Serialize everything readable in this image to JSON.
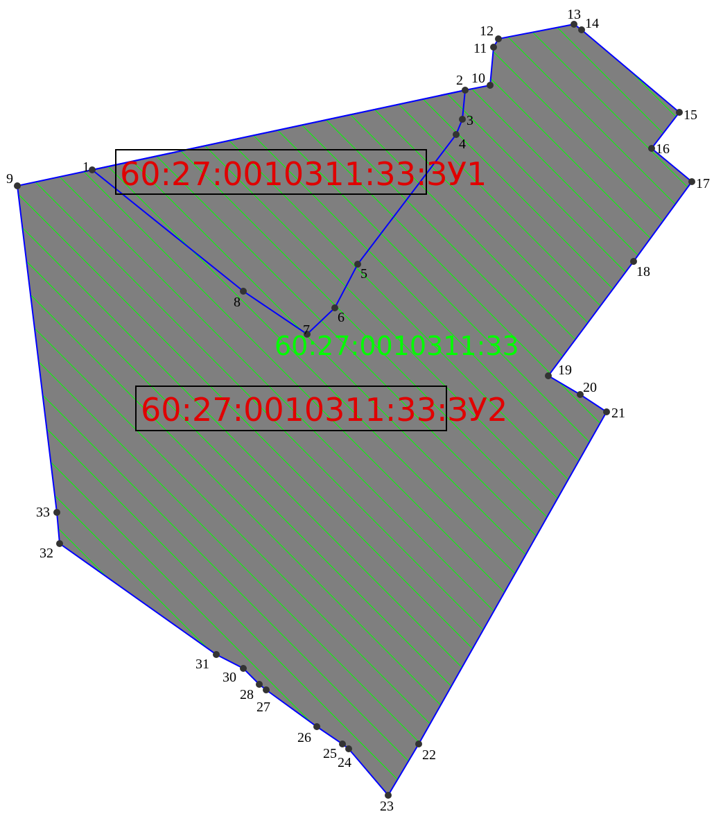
{
  "colors": {
    "fill": "#7f7f7f",
    "hatch": "#00ff00",
    "boundary": "#0000ff",
    "point": "#333333",
    "parcel_text": "#e00000",
    "cadastral_text": "#00ff00",
    "frame": "#000000"
  },
  "map": {
    "cadastral_number": "60:27:0010311:33",
    "parcels": [
      {
        "id": "zu1",
        "label": "60:27:0010311:33:ЗУ1"
      },
      {
        "id": "zu2",
        "label": "60:27:0010311:33:ЗУ2"
      }
    ],
    "points": [
      "1",
      "2",
      "3",
      "4",
      "5",
      "6",
      "7",
      "8",
      "9",
      "10",
      "11",
      "12",
      "13",
      "14",
      "15",
      "16",
      "17",
      "18",
      "19",
      "20",
      "21",
      "22",
      "23",
      "24",
      "25",
      "26",
      "27",
      "28",
      "30",
      "31",
      "32",
      "33"
    ]
  }
}
